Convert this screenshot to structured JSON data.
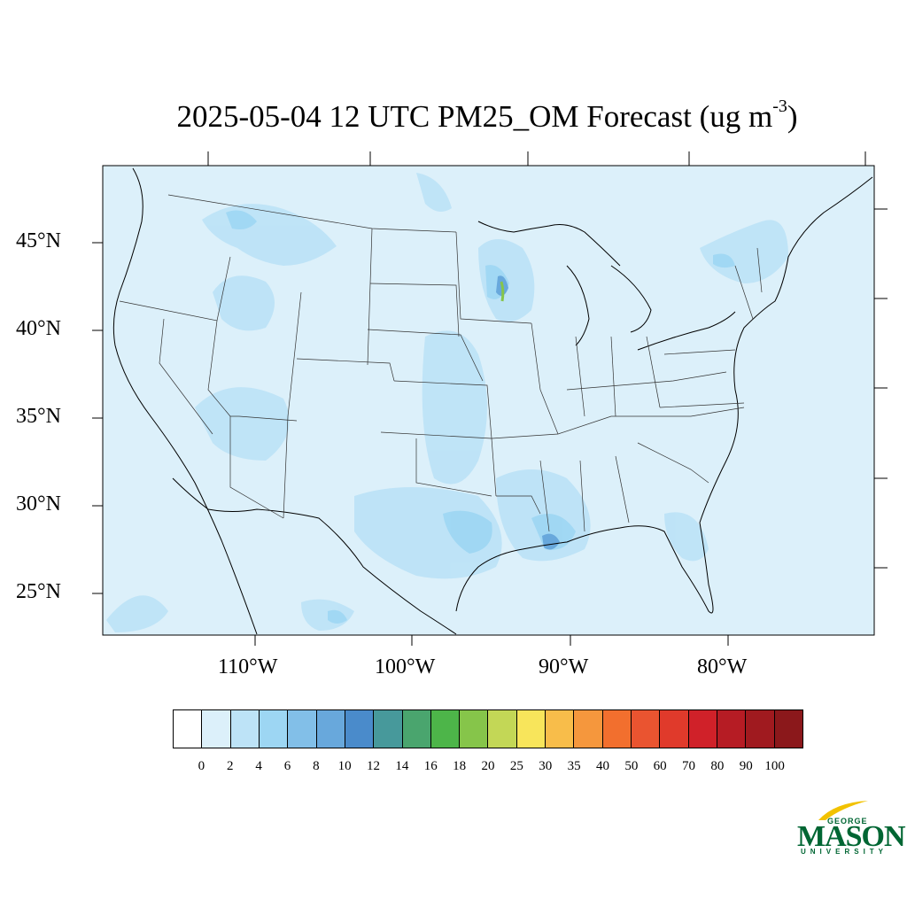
{
  "title": {
    "main": "2025-05-04 12 UTC PM25_OM Forecast (ug m",
    "sup": "-3",
    "close": ")"
  },
  "map": {
    "lat_labels": [
      "45°N",
      "40°N",
      "35°N",
      "30°N",
      "25°N"
    ],
    "lon_labels": [
      "110°W",
      "100°W",
      "90°W",
      "80°W"
    ],
    "background_color": "#dcf0fa"
  },
  "colorbar": {
    "labels": [
      "0",
      "2",
      "4",
      "6",
      "8",
      "10",
      "12",
      "14",
      "16",
      "18",
      "20",
      "25",
      "30",
      "35",
      "40",
      "50",
      "60",
      "70",
      "80",
      "90",
      "100"
    ],
    "colors": [
      "#ffffff",
      "#dcf0fa",
      "#bde3f7",
      "#9dd6f3",
      "#82bfe8",
      "#68a8dc",
      "#4a8bcb",
      "#47999b",
      "#4aa56e",
      "#4db549",
      "#86c54a",
      "#c3d756",
      "#f8e55b",
      "#f8bd4a",
      "#f5973d",
      "#f26f2e",
      "#ea5430",
      "#e03a2b",
      "#d02129",
      "#b61c24",
      "#a01a1f",
      "#8b181b"
    ]
  },
  "logo": {
    "top": "GEORGE",
    "middle": "MASON",
    "bottom": "UNIVERSITY"
  }
}
